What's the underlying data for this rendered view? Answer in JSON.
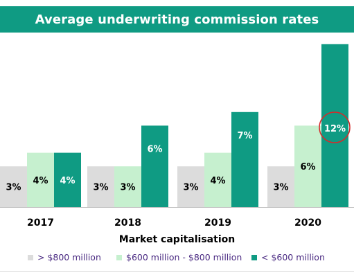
{
  "colors": {
    "title_bg": "#0f9b83",
    "large_cap": "#dcdcdc",
    "mid_cap": "#c6f0cf",
    "small_cap": "#0f9b83",
    "highlight_circle": "#d62a2a"
  },
  "chart_data": {
    "type": "bar",
    "title": "Average underwriting commission rates",
    "xlabel": "Market capitalisation",
    "ylabel": "",
    "categories": [
      "2017",
      "2018",
      "2019",
      "2020"
    ],
    "series": [
      {
        "name": "> $800 million",
        "values": [
          3,
          3,
          3,
          3
        ],
        "labels": [
          "3%",
          "3%",
          "3%",
          "3%"
        ]
      },
      {
        "name": "$600 million - $800 million",
        "values": [
          4,
          3,
          4,
          6
        ],
        "labels": [
          "4%",
          "3%",
          "4%",
          "6%"
        ]
      },
      {
        "name": "< $600 million",
        "values": [
          4,
          6,
          7,
          12
        ],
        "labels": [
          "4%",
          "6%",
          "7%",
          "12%"
        ]
      }
    ],
    "ylim": [
      0,
      13
    ],
    "grid": false,
    "legend_position": "bottom",
    "annotation": {
      "category": "2020",
      "series": "< $600 million",
      "style": "red-circle"
    }
  }
}
